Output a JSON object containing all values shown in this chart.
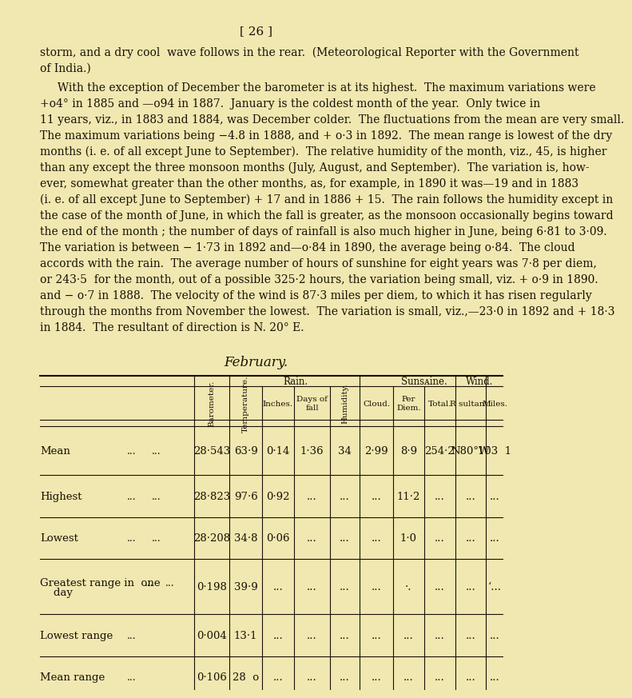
{
  "page_number": "[ 26 ]",
  "background_color": "#f0e8b0",
  "text_color": "#1a1008",
  "para1_lines": [
    "storm, and a dry cool  wave follows in the rear.  (Meteorological Reporter with the Government",
    "of India.)"
  ],
  "para2_lines": [
    "     With the exception of December the barometer is at its highest.  The maximum variations were",
    "+o4° in 1885 and —o94 in 1887.  January is the coldest month of the year.  Only twice in",
    "11 years, viz., in 1883 and 1884, was December colder.  The fluctuations from the mean are very small.",
    "The maximum variations being −4.8 in 1888, and + o·3 in 1892.  The mean range is lowest of the dry",
    "months (i. e. of all except June to September).  The relative humidity of the month, viz., 45, is higher",
    "than any except the three monsoon months (July, August, and September).  The variation is, how-",
    "ever, somewhat greater than the other months, as, for example, in 1890 it was—19 and in 1883",
    "(i. e. of all except June to September) + 17 and in 1886 + 15.  The rain follows the humidity except in",
    "the case of the month of June, in which the fall is greater, as the monsoon occasionally begins toward",
    "the end of the month ; the number of days of rainfall is also much higher in June, being 6·81 to 3·09.",
    "The variation is between − 1·73 in 1892 and—o·84 in 1890, the average being o·84.  The cloud",
    "accords with the rain.  The average number of hours of sunshine for eight years was 7·8 per diem,",
    "or 243·5  for the month, out of a possible 325·2 hours, the variation being small, viz. + o·9 in 1890.",
    "and − o·7 in 1888.  The velocity of the wind is 87·3 miles per diem, to which it has risen regularly",
    "through the months from November the lowest.  The variation is small, viz.,—23·0 in 1892 and + 18·3",
    "in 1884.  The resultant of direction is N. 20° E."
  ],
  "table_title": "February.",
  "rows": [
    {
      "label": "Mean",
      "dots1": "...",
      "dots2": "...",
      "barometer": "28·543",
      "temperature": "63·9",
      "inches": "0·14",
      "days_fall": "1·36",
      "humidity": "34",
      "cloud": "2·99",
      "per_diem": "8·9",
      "total": "254·2",
      "resultant": "N80°W",
      "miles": "103  1"
    },
    {
      "label": "Highest",
      "dots1": "...",
      "dots2": "...",
      "barometer": "28·823",
      "temperature": "97·6",
      "inches": "0·92",
      "days_fall": "...",
      "humidity": "...",
      "cloud": "...",
      "per_diem": "11·2",
      "total": "...",
      "resultant": "...",
      "miles": "..."
    },
    {
      "label": "Lowest",
      "dots1": "...",
      "dots2": "...",
      "barometer": "28·208",
      "temperature": "34·8",
      "inches": "0·06",
      "days_fall": "...",
      "humidity": "...",
      "cloud": "...",
      "per_diem": "1·0",
      "total": "...",
      "resultant": "...",
      "miles": "..."
    },
    {
      "label_line1": "Greatest range in  one",
      "label_line2": "    day",
      "dots1": "...",
      "dots2": "...",
      "barometer": "0·198",
      "temperature": "39·9",
      "inches": "...",
      "days_fall": "...",
      "humidity": "...",
      "cloud": "...",
      "per_diem": "·.",
      "total": "...",
      "resultant": "...",
      "miles": "‘..."
    },
    {
      "label": "Lowest range",
      "dots1": "...",
      "dots2": "",
      "barometer": "0·004",
      "temperature": "13·1",
      "inches": "...",
      "days_fall": "...",
      "humidity": "...",
      "cloud": "...",
      "per_diem": "...",
      "total": "...",
      "resultant": "...",
      "miles": "..."
    },
    {
      "label": "Mean range",
      "dots1": "...",
      "dots2": "",
      "barometer": "0·106",
      "temperature": "28  o",
      "inches": "...",
      "days_fall": "...",
      "humidity": "...",
      "cloud": "...",
      "per_diem": "...",
      "total": "...",
      "resultant": "...",
      "miles": "..."
    }
  ]
}
